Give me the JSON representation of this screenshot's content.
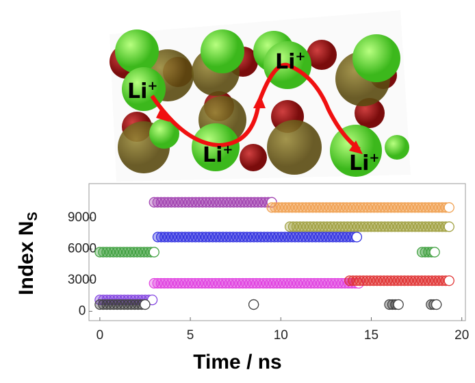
{
  "illustration": {
    "labels": [
      {
        "text": "Li",
        "sup": "+"
      },
      {
        "text": "Li",
        "sup": "+"
      },
      {
        "text": "Li",
        "sup": "+"
      },
      {
        "text": "Li",
        "sup": "+"
      }
    ]
  },
  "chart_data": {
    "type": "band-scatter",
    "xlabel": "Time / ns",
    "ylabel": "Index N",
    "ylabel_sub": "S",
    "xlim": [
      -0.6,
      20.2
    ],
    "ylim": [
      -900,
      12300
    ],
    "xticks": [
      0,
      5,
      10,
      15,
      20
    ],
    "yticks": [
      0,
      3000,
      6000,
      9000
    ],
    "series": [
      {
        "color": "#a040b0",
        "x": [
          3,
          9.5
        ],
        "value": 10500
      },
      {
        "color": "#f0a050",
        "x": [
          9.5,
          19.3
        ],
        "value": 10000
      },
      {
        "color": "#a0a040",
        "x": [
          10.5,
          19.3
        ],
        "value": 8150
      },
      {
        "color": "#3030e0",
        "x": [
          3.2,
          14.2
        ],
        "value": 7150
      },
      {
        "color": "#40a040",
        "x": [
          0,
          3
        ],
        "value": 5700
      },
      {
        "color": "#40a040",
        "x": [
          17.8,
          18.5
        ],
        "value": 5700
      },
      {
        "color": "#e040e0",
        "x": [
          3,
          14.3
        ],
        "value": 2700
      },
      {
        "color": "#e03030",
        "x": [
          13.8,
          19.3
        ],
        "value": 2950
      },
      {
        "color": "#8040e0",
        "x": [
          0,
          2.9
        ],
        "value": 1100
      },
      {
        "color": "#404040",
        "x": [
          0,
          2.5
        ],
        "value": 650
      },
      {
        "color": "#404040",
        "x": [
          16,
          16.5
        ],
        "value": 650
      },
      {
        "color": "#404040",
        "x": [
          18.3,
          18.6
        ],
        "value": 650
      },
      {
        "color": "#404040",
        "x": [
          8.5,
          8.5
        ],
        "value": 650
      }
    ]
  }
}
